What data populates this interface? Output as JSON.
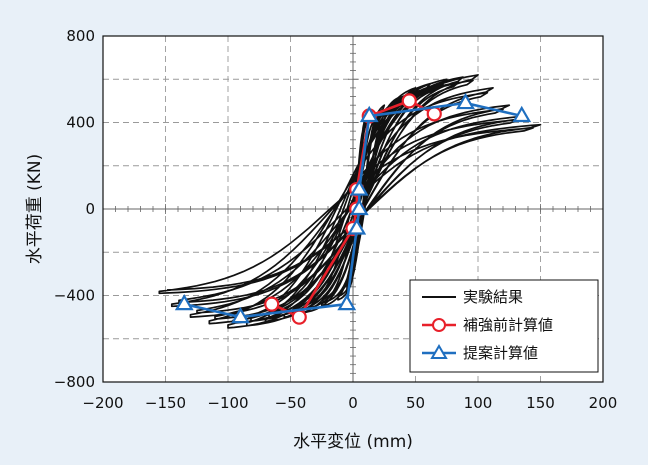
{
  "chart_data": {
    "type": "line",
    "xlabel": "水平変位 (mm)",
    "ylabel": "水平荷重 (KN)",
    "xlim": [
      -200,
      200
    ],
    "ylim": [
      -800,
      800
    ],
    "xticks": [
      -200,
      -150,
      -100,
      -50,
      0,
      50,
      100,
      150,
      200
    ],
    "yticks": [
      -800,
      -400,
      0,
      400,
      800
    ],
    "xtick_labels": [
      "−200",
      "−150",
      "−100",
      "−50",
      "0",
      "50",
      "100",
      "150",
      "200"
    ],
    "ytick_labels": [
      "−800",
      "−400",
      "0",
      "400",
      "800"
    ],
    "grid": true,
    "legend_position": "bottom-right",
    "hysteresis_cycles": [
      {
        "umax": 12,
        "fmax": 430,
        "umin": -5,
        "fmin": -380
      },
      {
        "umax": 25,
        "fmax": 480,
        "umin": -12,
        "fmin": -420
      },
      {
        "umax": 38,
        "fmax": 520,
        "umin": -25,
        "fmin": -450
      },
      {
        "umax": 50,
        "fmax": 560,
        "umin": -40,
        "fmin": -480
      },
      {
        "umax": 62,
        "fmax": 580,
        "umin": -55,
        "fmin": -500
      },
      {
        "umax": 75,
        "fmax": 600,
        "umin": -70,
        "fmin": -520
      },
      {
        "umax": 88,
        "fmax": 610,
        "umin": -85,
        "fmin": -540
      },
      {
        "umax": 100,
        "fmax": 620,
        "umin": -100,
        "fmin": -550
      },
      {
        "umax": 112,
        "fmax": 560,
        "umin": -115,
        "fmin": -530
      },
      {
        "umax": 125,
        "fmax": 480,
        "umin": -130,
        "fmin": -500
      },
      {
        "umax": 138,
        "fmax": 430,
        "umin": -145,
        "fmin": -450
      },
      {
        "umax": 150,
        "fmax": 390,
        "umin": -155,
        "fmin": -390
      }
    ],
    "series": [
      {
        "name": "実験結果",
        "color": "#111111",
        "marker": "none"
      },
      {
        "name": "補強前計算値",
        "color": "#e8202a",
        "marker": "circle",
        "x": [
          -65,
          -43,
          0,
          3,
          3,
          13,
          45,
          65
        ],
        "y": [
          -440,
          -500,
          -90,
          0,
          90,
          430,
          500,
          440
        ]
      },
      {
        "name": "提案計算値",
        "color": "#1f6fc0",
        "marker": "triangle",
        "x": [
          -135,
          -90,
          -5,
          3,
          5,
          5,
          13,
          90,
          135
        ],
        "y": [
          -440,
          -500,
          -440,
          -90,
          0,
          90,
          430,
          490,
          430
        ]
      }
    ]
  }
}
